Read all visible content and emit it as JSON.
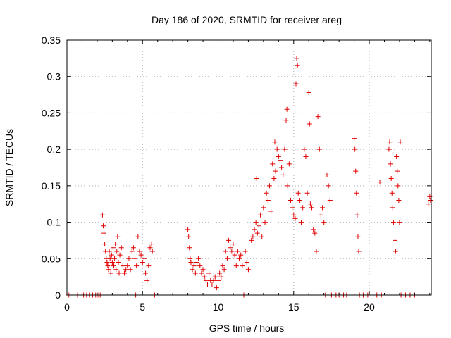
{
  "chart_data": {
    "type": "scatter",
    "title": "Day 186 of 2020, SRMTID for receiver areg",
    "xlabel": "GPS time / hours",
    "ylabel": "SRMTID / TECUs",
    "xlim": [
      0,
      24.1
    ],
    "ylim": [
      0,
      0.35
    ],
    "xticks": [
      0,
      5,
      10,
      15,
      20
    ],
    "xtick_labels": [
      "0",
      "5",
      "10",
      "15",
      "20"
    ],
    "yticks": [
      0,
      0.05,
      0.1,
      0.15,
      0.2,
      0.25,
      0.3,
      0.35
    ],
    "ytick_labels": [
      "0",
      "0.05",
      "0.1",
      "0.15",
      "0.2",
      "0.25",
      "0.3",
      "0.35"
    ],
    "grid": true,
    "marker": "plus",
    "color": "#e00000",
    "series": [
      {
        "name": "SRMTID",
        "points": [
          [
            0.1,
            0
          ],
          [
            0.2,
            0
          ],
          [
            0.7,
            0
          ],
          [
            1.0,
            0
          ],
          [
            1.1,
            0
          ],
          [
            1.3,
            0
          ],
          [
            1.5,
            0
          ],
          [
            1.7,
            0
          ],
          [
            1.9,
            0
          ],
          [
            2.0,
            0
          ],
          [
            2.1,
            0
          ],
          [
            2.2,
            0
          ],
          [
            2.35,
            0.11
          ],
          [
            2.4,
            0.095
          ],
          [
            2.45,
            0.085
          ],
          [
            2.5,
            0.07
          ],
          [
            2.55,
            0.06
          ],
          [
            2.6,
            0.05
          ],
          [
            2.65,
            0.045
          ],
          [
            2.7,
            0.04
          ],
          [
            2.75,
            0.035
          ],
          [
            2.8,
            0.06
          ],
          [
            2.85,
            0.05
          ],
          [
            2.9,
            0.03
          ],
          [
            2.95,
            0.055
          ],
          [
            3.0,
            0.045
          ],
          [
            3.05,
            0.065
          ],
          [
            3.1,
            0.04
          ],
          [
            3.15,
            0.05
          ],
          [
            3.2,
            0.07
          ],
          [
            3.25,
            0.035
          ],
          [
            3.3,
            0.06
          ],
          [
            3.35,
            0.08
          ],
          [
            3.4,
            0.045
          ],
          [
            3.45,
            0.03
          ],
          [
            3.5,
            0.055
          ],
          [
            3.6,
            0.065
          ],
          [
            3.7,
            0.04
          ],
          [
            3.8,
            0.03
          ],
          [
            3.9,
            0.035
          ],
          [
            4.0,
            0.04
          ],
          [
            4.1,
            0.05
          ],
          [
            4.2,
            0.035
          ],
          [
            4.3,
            0.06
          ],
          [
            4.4,
            0.065
          ],
          [
            4.5,
            0.05
          ],
          [
            4.55,
            0
          ],
          [
            4.6,
            0.04
          ],
          [
            4.7,
            0.08
          ],
          [
            4.8,
            0.06
          ],
          [
            4.9,
            0.055
          ],
          [
            5.0,
            0.045
          ],
          [
            5.1,
            0.05
          ],
          [
            5.2,
            0.03
          ],
          [
            5.3,
            0.02
          ],
          [
            5.4,
            0.04
          ],
          [
            5.5,
            0.065
          ],
          [
            5.6,
            0.07
          ],
          [
            5.65,
            0.06
          ],
          [
            5.8,
            0
          ],
          [
            7.95,
            0
          ],
          [
            8.0,
            0.09
          ],
          [
            8.05,
            0.08
          ],
          [
            8.1,
            0.065
          ],
          [
            8.15,
            0.05
          ],
          [
            8.2,
            0.045
          ],
          [
            8.3,
            0.035
          ],
          [
            8.4,
            0.04
          ],
          [
            8.5,
            0.03
          ],
          [
            8.6,
            0.045
          ],
          [
            8.7,
            0.05
          ],
          [
            8.8,
            0.04
          ],
          [
            8.9,
            0.03
          ],
          [
            9.0,
            0.035
          ],
          [
            9.1,
            0.025
          ],
          [
            9.2,
            0.02
          ],
          [
            9.3,
            0.015
          ],
          [
            9.4,
            0.03
          ],
          [
            9.5,
            0.02
          ],
          [
            9.6,
            0.015
          ],
          [
            9.7,
            0.02
          ],
          [
            9.8,
            0.025
          ],
          [
            9.9,
            0.01
          ],
          [
            10.0,
            0.02
          ],
          [
            10.1,
            0.03
          ],
          [
            10.2,
            0.025
          ],
          [
            10.3,
            0.04
          ],
          [
            10.4,
            0.035
          ],
          [
            10.5,
            0.06
          ],
          [
            10.6,
            0.05
          ],
          [
            10.7,
            0.075
          ],
          [
            10.8,
            0.065
          ],
          [
            10.9,
            0.06
          ],
          [
            11.0,
            0.07
          ],
          [
            11.1,
            0.055
          ],
          [
            11.2,
            0.04
          ],
          [
            11.3,
            0.06
          ],
          [
            11.4,
            0.05
          ],
          [
            11.5,
            0.055
          ],
          [
            11.6,
            0.04
          ],
          [
            11.7,
            0
          ],
          [
            11.8,
            0.06
          ],
          [
            11.9,
            0.045
          ],
          [
            12.0,
            0.035
          ],
          [
            12.2,
            0.075
          ],
          [
            12.3,
            0.08
          ],
          [
            12.4,
            0.09
          ],
          [
            12.5,
            0.1
          ],
          [
            12.55,
            0.16
          ],
          [
            12.6,
            0.085
          ],
          [
            12.7,
            0.095
          ],
          [
            12.8,
            0.11
          ],
          [
            12.9,
            0.08
          ],
          [
            13.0,
            0.12
          ],
          [
            13.1,
            0.1
          ],
          [
            13.2,
            0.14
          ],
          [
            13.3,
            0.13
          ],
          [
            13.4,
            0.15
          ],
          [
            13.5,
            0.115
          ],
          [
            13.6,
            0.18
          ],
          [
            13.7,
            0.16
          ],
          [
            13.75,
            0.21
          ],
          [
            13.8,
            0.17
          ],
          [
            13.9,
            0.2
          ],
          [
            14.0,
            0.19
          ],
          [
            14.1,
            0.185
          ],
          [
            14.2,
            0.175
          ],
          [
            14.3,
            0.165
          ],
          [
            14.4,
            0.2
          ],
          [
            14.5,
            0.24
          ],
          [
            14.55,
            0.255
          ],
          [
            14.6,
            0.15
          ],
          [
            14.7,
            0.18
          ],
          [
            14.8,
            0.13
          ],
          [
            14.9,
            0.12
          ],
          [
            15.0,
            0.11
          ],
          [
            15.1,
            0.105
          ],
          [
            15.15,
            0.29
          ],
          [
            15.2,
            0.325
          ],
          [
            15.25,
            0.315
          ],
          [
            15.3,
            0.14
          ],
          [
            15.4,
            0.13
          ],
          [
            15.5,
            0.1
          ],
          [
            15.6,
            0.12
          ],
          [
            15.7,
            0.2
          ],
          [
            15.8,
            0.19
          ],
          [
            15.9,
            0.14
          ],
          [
            16.0,
            0.278
          ],
          [
            16.05,
            0.235
          ],
          [
            16.1,
            0.125
          ],
          [
            16.2,
            0.12
          ],
          [
            16.3,
            0.09
          ],
          [
            16.4,
            0.085
          ],
          [
            16.5,
            0.06
          ],
          [
            16.6,
            0.245
          ],
          [
            16.7,
            0.2
          ],
          [
            16.8,
            0.11
          ],
          [
            16.9,
            0.12
          ],
          [
            17.0,
            0.1
          ],
          [
            17.1,
            0
          ],
          [
            17.2,
            0.165
          ],
          [
            17.3,
            0.15
          ],
          [
            17.4,
            0.13
          ],
          [
            17.5,
            0
          ],
          [
            17.8,
            0
          ],
          [
            18.0,
            0
          ],
          [
            18.3,
            0
          ],
          [
            18.5,
            0
          ],
          [
            19.0,
            0.215
          ],
          [
            19.05,
            0.2
          ],
          [
            19.1,
            0.17
          ],
          [
            19.15,
            0.14
          ],
          [
            19.2,
            0.11
          ],
          [
            19.25,
            0.08
          ],
          [
            19.3,
            0.06
          ],
          [
            19.35,
            0
          ],
          [
            19.6,
            0
          ],
          [
            19.9,
            0
          ],
          [
            20.5,
            0
          ],
          [
            20.7,
            0.155
          ],
          [
            20.8,
            0
          ],
          [
            21.3,
            0.2
          ],
          [
            21.35,
            0.21
          ],
          [
            21.4,
            0.18
          ],
          [
            21.45,
            0.16
          ],
          [
            21.5,
            0.14
          ],
          [
            21.55,
            0.12
          ],
          [
            21.6,
            0.1
          ],
          [
            21.7,
            0.075
          ],
          [
            21.75,
            0.06
          ],
          [
            21.8,
            0.19
          ],
          [
            21.85,
            0.17
          ],
          [
            21.9,
            0.15
          ],
          [
            21.95,
            0.13
          ],
          [
            22.0,
            0.1
          ],
          [
            22.05,
            0.21
          ],
          [
            22.1,
            0
          ],
          [
            22.4,
            0
          ],
          [
            22.7,
            0
          ],
          [
            23.0,
            0
          ],
          [
            23.9,
            0.125
          ],
          [
            24.0,
            0.135
          ],
          [
            24.05,
            0.13
          ]
        ]
      }
    ]
  }
}
